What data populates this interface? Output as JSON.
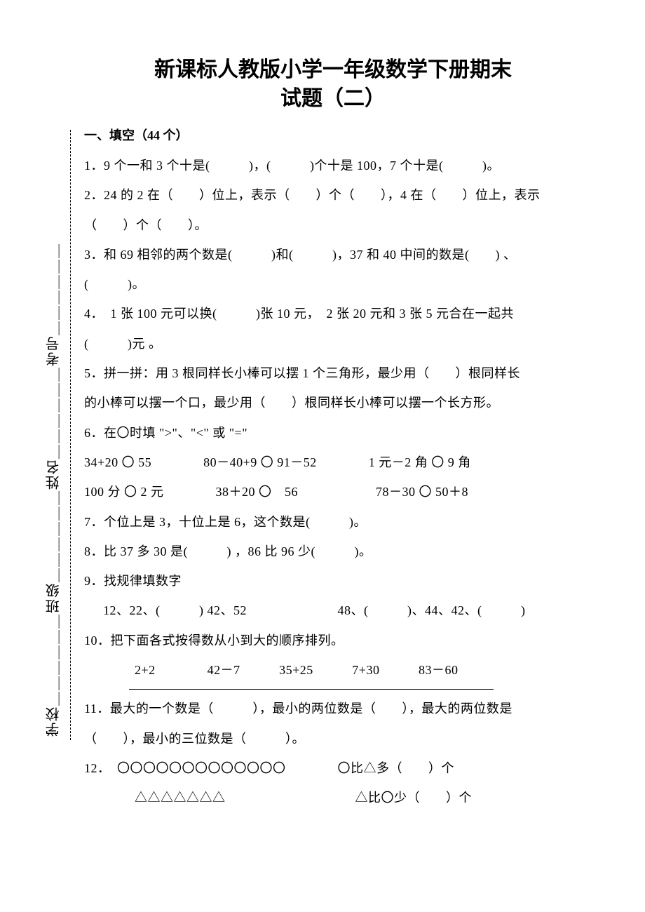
{
  "title_line1": "新课标人教版小学一年级数学下册期末",
  "title_line2": "试题（二）",
  "section1_head": "一、填空（44 个）",
  "q1": "1．9 个一和 3 个十是(　　　)，(　　　)个十是 100，7 个十是(　　　)。",
  "q2a": "2．24 的 2 在（　　）位上，表示（　　）个（　　），4 在（　　）位上，表示",
  "q2b": "（　　）个（　　）。",
  "q3a": "3．和 69 相邻的两个数是(　　　)和(　　　)，37 和 40 中间的数是(　　) 、",
  "q3b": "(　　　)。",
  "q4a": "4．　1 张 100 元可以换(　　　)张 10 元，　2 张 20 元和 3 张 5 元合在一起共",
  "q4b": "(　　　)元 。",
  "q5a": "5．拼一拼：用 3 根同样长小棒可以摆 1 个三角形，最少用（　　）根同样长",
  "q5b": "的小棒可以摆一个口，最少用（　　）根同样长小棒可以摆一个长方形。",
  "q6a": "6．在〇时填 \">\"、\"<\" 或 \"=\"",
  "q6b": "34+20 〇 55　　　　80－40+9 〇 91－52　　　　1 元－2 角 〇 9 角",
  "q6c": "100 分 〇 2 元　　　　38＋20 〇　56　　　　　　78－30 〇 50＋8",
  "q7": "7．个位上是 3，十位上是 6，这个数是(　　　)。",
  "q8": "8．比 37 多 30 是(　　　) ，86 比 96 少(　　　)。",
  "q9a": "9．找规律填数字",
  "q9b": "12、22、(　　　) 42、52　　　　　　　48、(　　　)、44、42、(　　　)",
  "q10a": "10．把下面各式按得数从小到大的顺序排列。",
  "q10b": "2+2　　　　42－7　　　35+25　　　7+30　　　83－60",
  "q11a": "11．最大的一个数是（　　　），最小的两位数是（　　），最大的两位数是",
  "q11b": "（　　），最小的三位数是（　　　）。",
  "q12a": "12．　〇〇〇〇〇〇〇〇〇〇〇〇〇　　　　〇比△多（　　）个",
  "q12b": "△△△△△△△　　　　　　　　　　△比〇少（　　）个",
  "vlabel": "学校＿＿＿＿＿＿班级＿＿＿＿＿＿姓名＿＿＿＿＿＿考号＿＿＿＿＿＿"
}
